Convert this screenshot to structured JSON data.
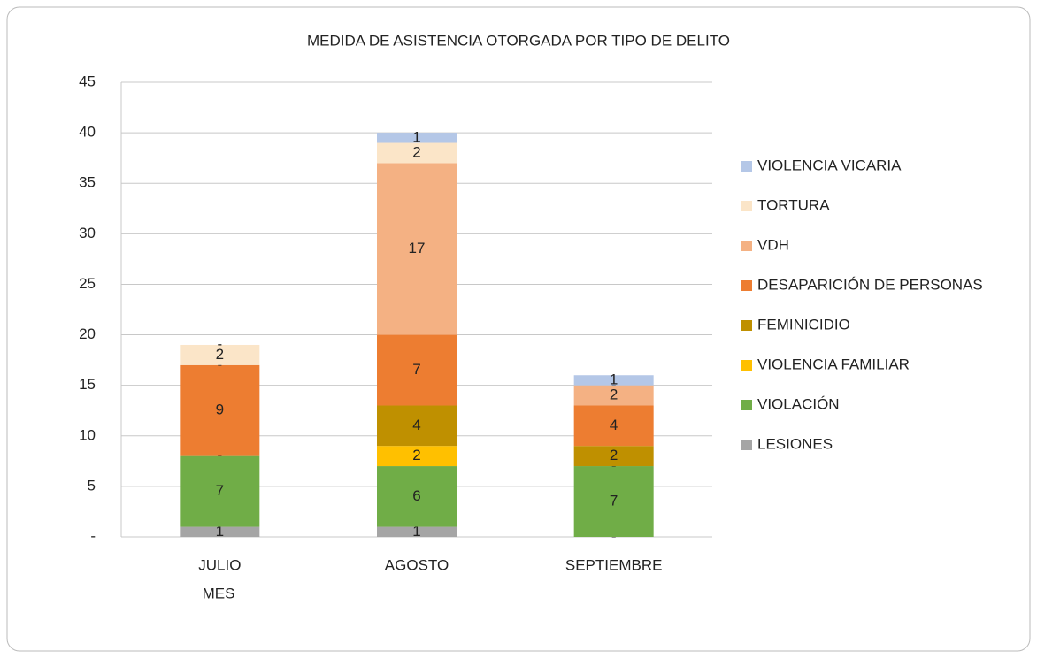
{
  "chart_data": {
    "type": "stacked_bar",
    "title": "MEDIDA DE ASISTENCIA OTORGADA POR TIPO DE DELITO",
    "x_label": "MES",
    "categories": [
      "JULIO",
      "AGOSTO",
      "SEPTIEMBRE"
    ],
    "series": [
      {
        "name": "LESIONES",
        "color": "#a5a5a5",
        "values": [
          1,
          1,
          0
        ],
        "value_labels": [
          "1",
          "1",
          "-"
        ]
      },
      {
        "name": "VIOLACIÓN",
        "color": "#70ad47",
        "values": [
          7,
          6,
          7
        ],
        "value_labels": [
          "7",
          "6",
          "7"
        ]
      },
      {
        "name": "VIOLENCIA FAMILIAR",
        "color": "#ffc000",
        "values": [
          0,
          2,
          0
        ],
        "value_labels": [
          "-",
          "2",
          "-"
        ]
      },
      {
        "name": "FEMINICIDIO",
        "color": "#bf9000",
        "values": [
          0,
          4,
          2
        ],
        "value_labels": [
          "-",
          "4",
          "2"
        ]
      },
      {
        "name": "DESAPARICIÓN DE PERSONAS",
        "color": "#ed7d31",
        "values": [
          9,
          7,
          4
        ],
        "value_labels": [
          "9",
          "7",
          "4"
        ]
      },
      {
        "name": "VDH",
        "color": "#f4b183",
        "values": [
          0,
          17,
          2
        ],
        "value_labels": [
          "-",
          "17",
          "2"
        ]
      },
      {
        "name": "TORTURA",
        "color": "#fbe5c8",
        "values": [
          2,
          2,
          0
        ],
        "value_labels": [
          "2",
          "2",
          "-"
        ]
      },
      {
        "name": "VIOLENCIA VICARIA",
        "color": "#b4c7e7",
        "values": [
          0,
          1,
          1
        ],
        "value_labels": [
          "-",
          "1",
          "1"
        ]
      }
    ],
    "ylim": [
      0,
      45
    ],
    "yticks": [
      {
        "value": 0,
        "label": "-"
      },
      5,
      10,
      15,
      20,
      25,
      30,
      35,
      40,
      45
    ],
    "grid": true,
    "legend": "right"
  }
}
